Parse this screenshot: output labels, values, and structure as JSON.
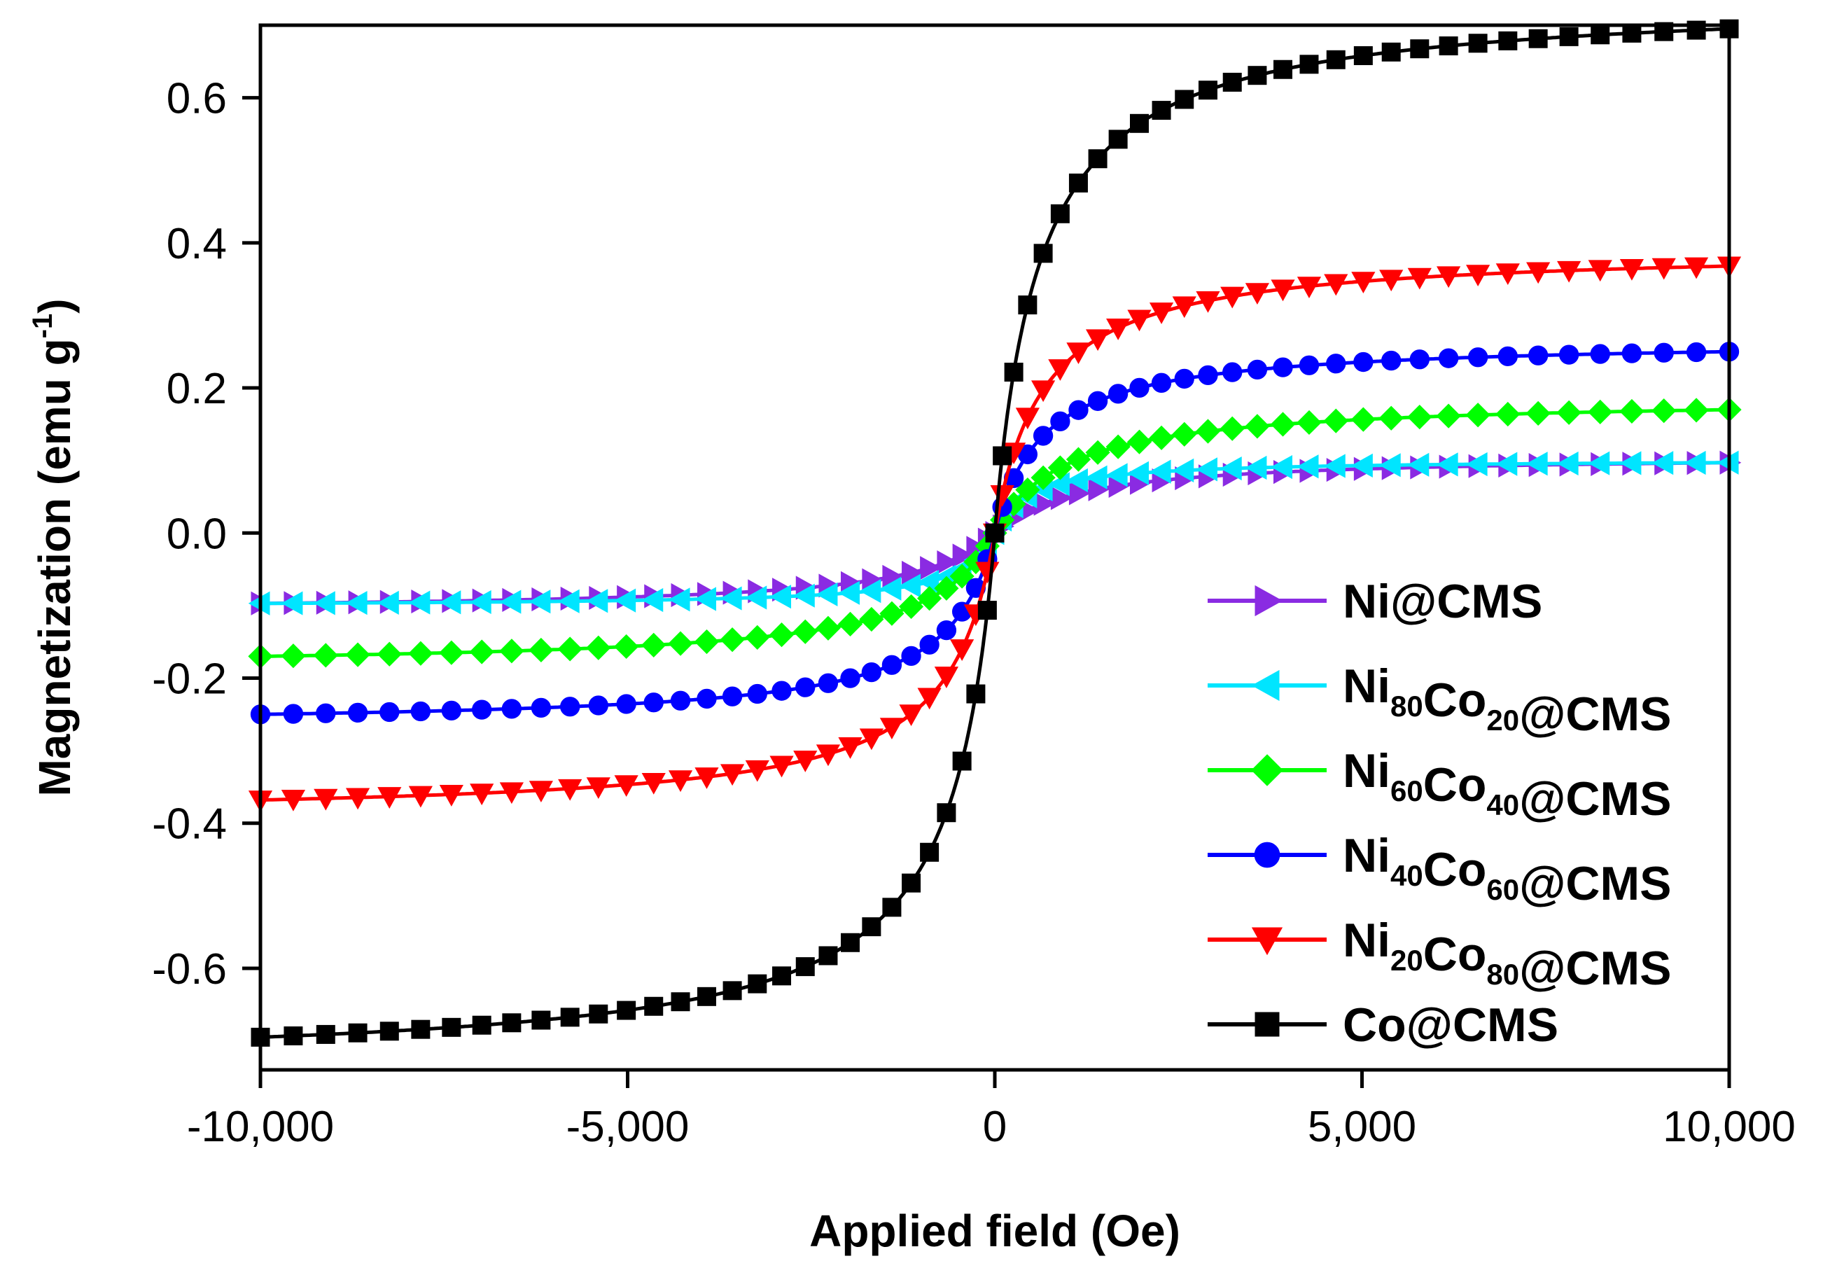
{
  "chart_data": {
    "type": "line",
    "title": "",
    "xlabel": "Applied field (Oe)",
    "ylabel_main": "Magnetization (emu g",
    "ylabel_sup": "-1",
    "ylabel_close": ")",
    "xlim": [
      -10000,
      10000
    ],
    "ylim": [
      -0.74,
      0.7
    ],
    "x_ticks": [
      -10000,
      -5000,
      0,
      5000,
      10000
    ],
    "x_tick_labels": [
      "-10,000",
      "-5,000",
      "0",
      "5,000",
      "10,000"
    ],
    "y_ticks": [
      -0.6,
      -0.4,
      -0.2,
      0.0,
      0.2,
      0.4,
      0.6
    ],
    "y_tick_labels": [
      "-0.6",
      "-0.4",
      "-0.2",
      "0.0",
      "0.2",
      "0.4",
      "0.6"
    ],
    "grid": false,
    "legend_position": "bottom-right",
    "series": [
      {
        "name": "Ni@CMS",
        "label": {
          "base": "Ni@CMS",
          "parts": []
        },
        "color": "#8A2BE2",
        "marker": "triangle-right",
        "Ms": 0.097,
        "H0": 1100,
        "n_markers": 61
      },
      {
        "name": "Ni80Co20@CMS",
        "label": {
          "parts": [
            [
              "Ni",
              "80"
            ],
            [
              "Co",
              "20"
            ]
          ],
          "tail": "@CMS"
        },
        "color": "#00E5FF",
        "marker": "triangle-left",
        "Ms": 0.097,
        "H0": 450,
        "n_markers": 61
      },
      {
        "name": "Ni60Co40@CMS",
        "label": {
          "parts": [
            [
              "Ni",
              "60"
            ],
            [
              "Co",
              "40"
            ]
          ],
          "tail": "@CMS"
        },
        "color": "#00FF00",
        "marker": "diamond",
        "Ms": 0.17,
        "H0": 950,
        "n_markers": 61
      },
      {
        "name": "Ni40Co60@CMS",
        "label": {
          "parts": [
            [
              "Ni",
              "40"
            ],
            [
              "Co",
              "60"
            ]
          ],
          "tail": "@CMS"
        },
        "color": "#0000FF",
        "marker": "circle",
        "Ms": 0.25,
        "H0": 650,
        "n_markers": 61
      },
      {
        "name": "Ni20Co80@CMS",
        "label": {
          "parts": [
            [
              "Ni",
              "20"
            ],
            [
              "Co",
              "80"
            ]
          ],
          "tail": "@CMS"
        },
        "color": "#FF0000",
        "marker": "triangle-down",
        "Ms": 0.368,
        "H0": 650,
        "n_markers": 61
      },
      {
        "name": "Co@CMS",
        "label": {
          "base": "Co@CMS",
          "parts": []
        },
        "color": "#000000",
        "marker": "square",
        "Ms": 0.695,
        "H0": 600,
        "n_markers": 61
      }
    ]
  }
}
